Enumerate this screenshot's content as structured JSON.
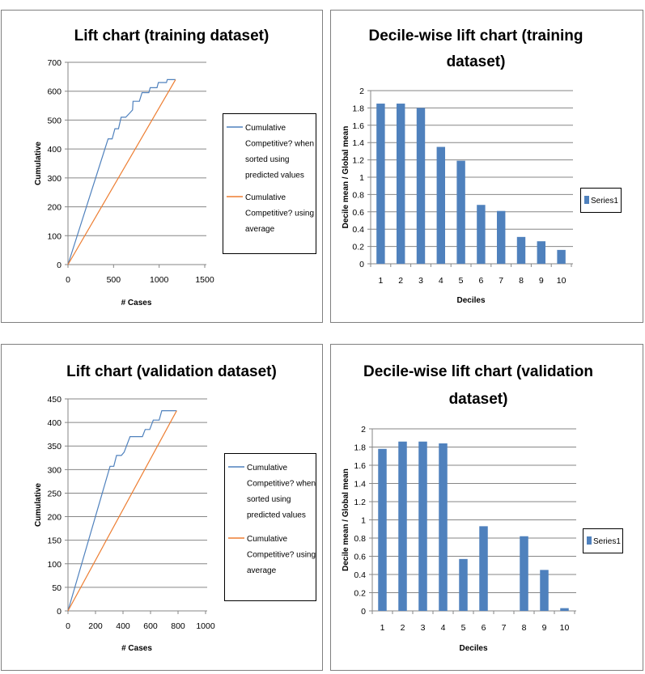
{
  "chart_data": [
    {
      "type": "line",
      "title": "Lift chart (training dataset)",
      "xlabel": "# Cases",
      "ylabel": "Cumulative",
      "xlim": [
        0,
        1500
      ],
      "ylim": [
        0,
        700
      ],
      "xticks": [
        "0",
        "500",
        "1000",
        "1500"
      ],
      "yticks": [
        "0",
        "100",
        "200",
        "300",
        "400",
        "500",
        "600",
        "700"
      ],
      "grid": true,
      "legend_position": "right",
      "series": [
        {
          "name": "Cumulative Competitive? when sorted using predicted values",
          "legend_lines": [
            "Cumulative",
            "Competitive? when",
            "sorted using",
            "predicted values"
          ],
          "color": "#4F81BD",
          "x": [
            0,
            440,
            485,
            515,
            554,
            583,
            634,
            679,
            708,
            714,
            783,
            812,
            887,
            902,
            976,
            991,
            1080,
            1089,
            1180
          ],
          "y": [
            0,
            435,
            435,
            470,
            470,
            510,
            510,
            525,
            535,
            565,
            565,
            595,
            595,
            612,
            612,
            630,
            630,
            640,
            640
          ]
        },
        {
          "name": "Cumulative Competitive? using average",
          "legend_lines": [
            "Cumulative",
            "Competitive? using",
            "average"
          ],
          "color": "#ED7D31",
          "x": [
            0,
            1180
          ],
          "y": [
            0,
            640
          ]
        }
      ]
    },
    {
      "type": "bar",
      "title": "Decile-wise lift chart (training dataset)",
      "title_lines": [
        "Decile-wise lift chart (training",
        "dataset)"
      ],
      "xlabel": "Deciles",
      "ylabel": "Decile mean / Global mean",
      "ylim": [
        0,
        2
      ],
      "yticks": [
        "0",
        "0.2",
        "0.4",
        "0.6",
        "0.8",
        "1",
        "1.2",
        "1.4",
        "1.6",
        "1.8",
        "2"
      ],
      "categories": [
        "1",
        "2",
        "3",
        "4",
        "5",
        "6",
        "7",
        "8",
        "9",
        "10"
      ],
      "grid": true,
      "legend_position": "right",
      "series": [
        {
          "name": "Series1",
          "color": "#4F81BD",
          "values": [
            1.85,
            1.85,
            1.8,
            1.35,
            1.19,
            0.68,
            0.61,
            0.31,
            0.26,
            0.16
          ]
        }
      ]
    },
    {
      "type": "line",
      "title": "Lift chart (validation dataset)",
      "xlabel": "# Cases",
      "ylabel": "Cumulative",
      "xlim": [
        0,
        1000
      ],
      "ylim": [
        0,
        450
      ],
      "xticks": [
        "0",
        "200",
        "400",
        "600",
        "800",
        "1000"
      ],
      "yticks": [
        "0",
        "50",
        "100",
        "150",
        "200",
        "250",
        "300",
        "350",
        "400",
        "450"
      ],
      "grid": true,
      "legend_position": "right",
      "series": [
        {
          "name": "Cumulative Competitive? when sorted using predicted values",
          "legend_lines": [
            "Cumulative",
            "Competitive? when",
            "sorted using",
            "predicted values"
          ],
          "color": "#4F81BD",
          "x": [
            0,
            306,
            333,
            353,
            360,
            388,
            408,
            451,
            541,
            561,
            594,
            620,
            663,
            682,
            790
          ],
          "y": [
            0,
            307,
            307,
            330,
            330,
            330,
            337,
            370,
            370,
            385,
            385,
            405,
            405,
            425,
            425
          ]
        },
        {
          "name": "Cumulative Competitive? using average",
          "legend_lines": [
            "Cumulative",
            "Competitive? using",
            "average"
          ],
          "color": "#ED7D31",
          "x": [
            0,
            790
          ],
          "y": [
            0,
            425
          ]
        }
      ]
    },
    {
      "type": "bar",
      "title": "Decile-wise lift chart (validation dataset)",
      "title_lines": [
        "Decile-wise lift chart (validation",
        "dataset)"
      ],
      "xlabel": "Deciles",
      "ylabel": "Decile mean / Global mean",
      "ylim": [
        0,
        2
      ],
      "yticks": [
        "0",
        "0.2",
        "0.4",
        "0.6",
        "0.8",
        "1",
        "1.2",
        "1.4",
        "1.6",
        "1.8",
        "2"
      ],
      "categories": [
        "1",
        "2",
        "3",
        "4",
        "5",
        "6",
        "7",
        "8",
        "9",
        "10"
      ],
      "grid": true,
      "legend_position": "right",
      "series": [
        {
          "name": "Series1",
          "color": "#4F81BD",
          "values": [
            1.78,
            1.86,
            1.86,
            1.84,
            0.57,
            0.93,
            0,
            0.82,
            0.45,
            0.03
          ]
        }
      ]
    }
  ]
}
